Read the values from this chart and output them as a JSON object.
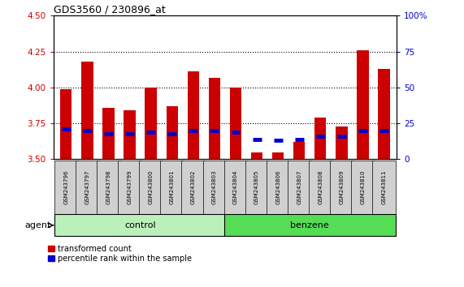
{
  "title": "GDS3560 / 230896_at",
  "samples": [
    "GSM243796",
    "GSM243797",
    "GSM243798",
    "GSM243799",
    "GSM243800",
    "GSM243801",
    "GSM243802",
    "GSM243803",
    "GSM243804",
    "GSM243805",
    "GSM243806",
    "GSM243807",
    "GSM243808",
    "GSM243809",
    "GSM243810",
    "GSM243811"
  ],
  "red_values": [
    3.99,
    4.18,
    3.86,
    3.84,
    4.0,
    3.87,
    4.11,
    4.07,
    4.0,
    3.55,
    3.55,
    3.62,
    3.79,
    3.73,
    4.26,
    4.13
  ],
  "blue_values": [
    3.71,
    3.7,
    3.68,
    3.68,
    3.69,
    3.68,
    3.7,
    3.7,
    3.69,
    3.64,
    3.63,
    3.64,
    3.66,
    3.66,
    3.7,
    3.7
  ],
  "baseline": 3.5,
  "ylim_left": [
    3.5,
    4.5
  ],
  "ylim_right": [
    0,
    100
  ],
  "yticks_left": [
    3.5,
    3.75,
    4.0,
    4.25,
    4.5
  ],
  "yticks_right": [
    0,
    25,
    50,
    75,
    100
  ],
  "groups": [
    {
      "label": "control",
      "start": 0,
      "end": 8
    },
    {
      "label": "benzene",
      "start": 8,
      "end": 16
    }
  ],
  "group_bg_light": "#bbf0bb",
  "group_bg_dark": "#55dd55",
  "bar_color_red": "#cc0000",
  "bar_color_blue": "#0000cc",
  "bar_width": 0.55,
  "tick_color_left": "#cc0000",
  "tick_color_right": "#0000cc",
  "grid_color": "#000000",
  "agent_label": "agent",
  "legend_red": "transformed count",
  "legend_blue": "percentile rank within the sample",
  "plot_bg": "#ffffff",
  "sample_box_color": "#d0d0d0"
}
